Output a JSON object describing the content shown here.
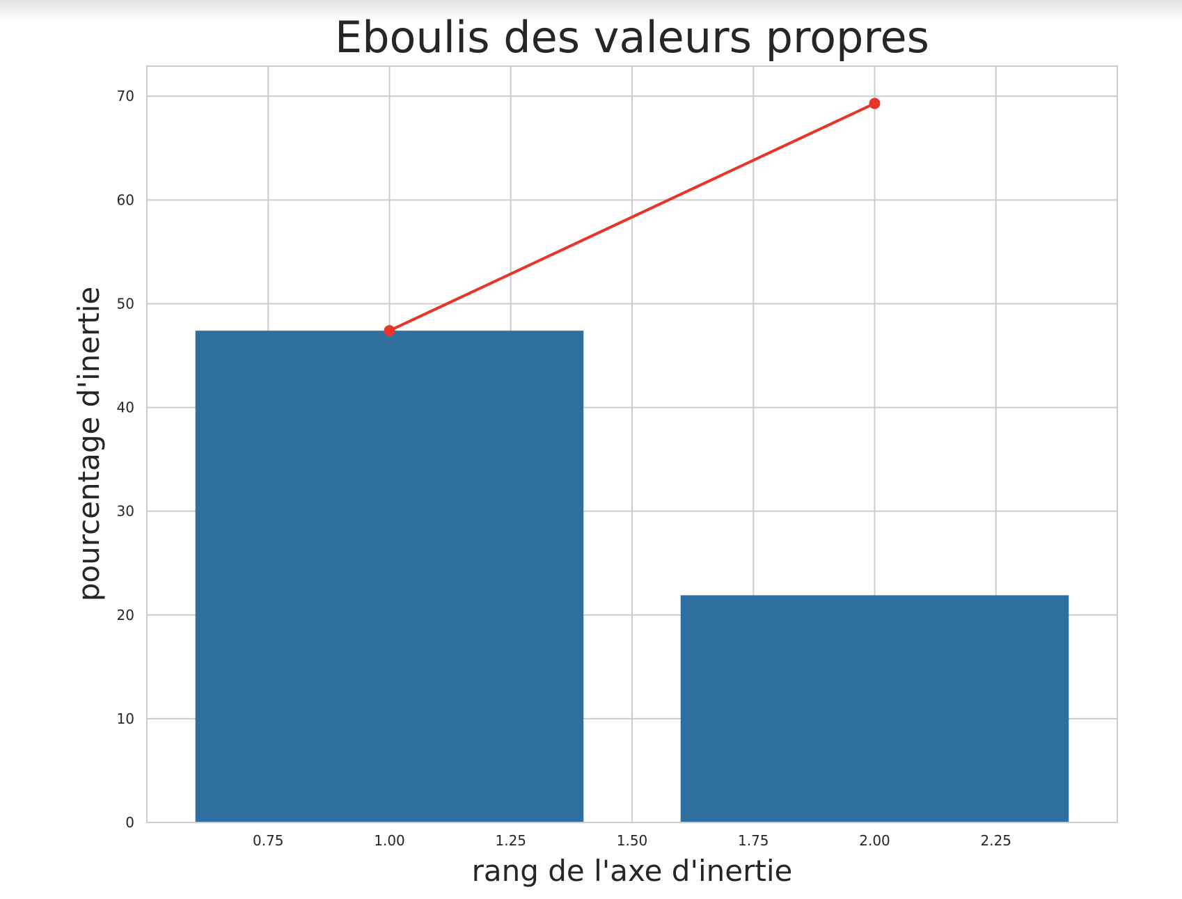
{
  "chart_data": {
    "type": "bar",
    "title": "Eboulis des valeurs propres",
    "xlabel": "rang de l'axe d'inertie",
    "ylabel": "pourcentage d'inertie",
    "xlim": [
      0.5,
      2.5
    ],
    "ylim": [
      0,
      72.9
    ],
    "grid": true,
    "bar_width": 0.8,
    "x_ticks": [
      0.75,
      1.0,
      1.25,
      1.5,
      1.75,
      2.0,
      2.25
    ],
    "x_tick_labels": [
      "0.75",
      "1.00",
      "1.25",
      "1.50",
      "1.75",
      "2.00",
      "2.25"
    ],
    "y_ticks": [
      0,
      10,
      20,
      30,
      40,
      50,
      60,
      70
    ],
    "y_tick_labels": [
      "0",
      "10",
      "20",
      "30",
      "40",
      "50",
      "60",
      "70"
    ],
    "series": [
      {
        "type": "bar",
        "x": [
          1,
          2
        ],
        "values": [
          47.4,
          21.9
        ],
        "color": "#3070a0"
      },
      {
        "type": "line",
        "x": [
          1,
          2
        ],
        "values": [
          47.4,
          69.3
        ],
        "color": "#e8352a",
        "marker": "circle"
      }
    ],
    "colors": {
      "background": "#ffffff",
      "grid": "#cccccc",
      "text": "#262626"
    }
  }
}
